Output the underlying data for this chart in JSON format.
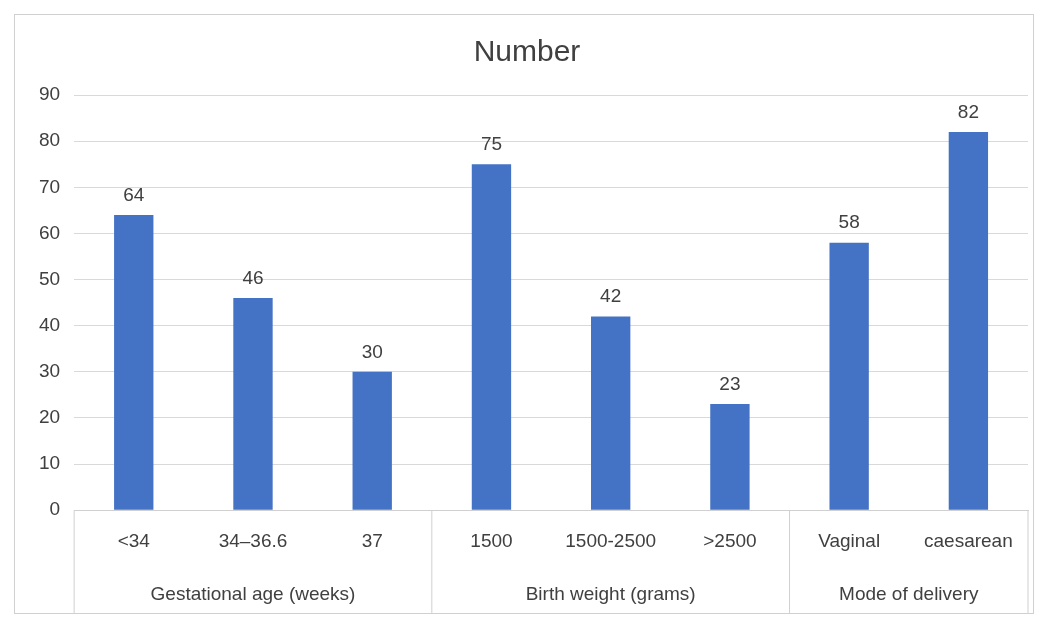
{
  "chart_data": {
    "type": "bar",
    "title": "Number",
    "categories": [
      "<34",
      "34–36.6",
      "37",
      "1500",
      "1500-2500",
      ">2500",
      "Vaginal",
      "caesarean"
    ],
    "values": [
      64,
      46,
      30,
      75,
      42,
      23,
      58,
      82
    ],
    "color": "#4472c4",
    "ylim": [
      0,
      90
    ],
    "yticks": [
      0,
      10,
      20,
      30,
      40,
      50,
      60,
      70,
      80,
      90
    ],
    "grid": "y",
    "data_labels": true,
    "legend": false,
    "annotations": [
      "Gestational age (weeks)",
      "Birth weight (grams)",
      "Mode of delivery"
    ]
  }
}
